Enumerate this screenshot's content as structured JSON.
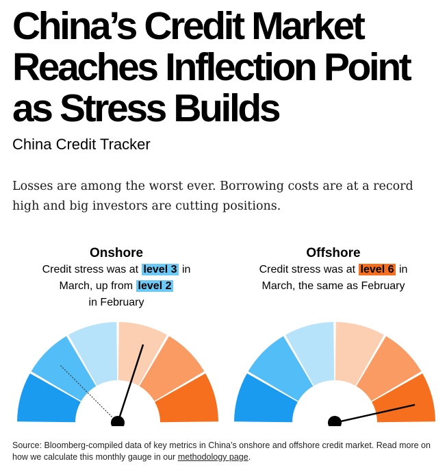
{
  "headline": [
    "China’s Credit Market",
    "Reaches Inflection Point",
    "as Stress Builds"
  ],
  "subhead": "China Credit Tracker",
  "dek": "Losses are among the worst ever. Borrowing costs are at a record high and big investors are cutting positions.",
  "colors": {
    "segments": [
      "#1a9bf0",
      "#52bdf6",
      "#b6e2fa",
      "#fdcfb2",
      "#fb9b64",
      "#f56f1e"
    ],
    "onshore_highlight": "#6cc8f7",
    "offshore_highlight": "#f56f1e",
    "needle": "#000000"
  },
  "onshore": {
    "title": "Onshore",
    "text_1": "Credit stress was at",
    "level_current": "level 3",
    "text_2": "in",
    "text_3": "March, up from",
    "level_previous": "level 2",
    "text_4": "in February"
  },
  "offshore": {
    "title": "Offshore",
    "text_1": "Credit stress was at",
    "level_current": "level 6",
    "text_2": "in",
    "text_3": "March, the same as February"
  },
  "chart_data": [
    {
      "type": "gauge",
      "name": "Onshore",
      "levels": [
        1,
        2,
        3,
        4,
        5,
        6
      ],
      "current_level": 3,
      "previous_level": 2,
      "current_fraction": 0.6,
      "previous_fraction": 0.25
    },
    {
      "type": "gauge",
      "name": "Offshore",
      "levels": [
        1,
        2,
        3,
        4,
        5,
        6
      ],
      "current_level": 6,
      "previous_level": 6,
      "current_fraction": 0.93,
      "previous_fraction": 0.93
    }
  ],
  "source": {
    "text": "Source: Bloomberg-compiled data of key metrics in China’s onshore and offshore credit market. Read more on how we calculate this monthly gauge in our",
    "link_text": "methodology page",
    "end": "."
  }
}
